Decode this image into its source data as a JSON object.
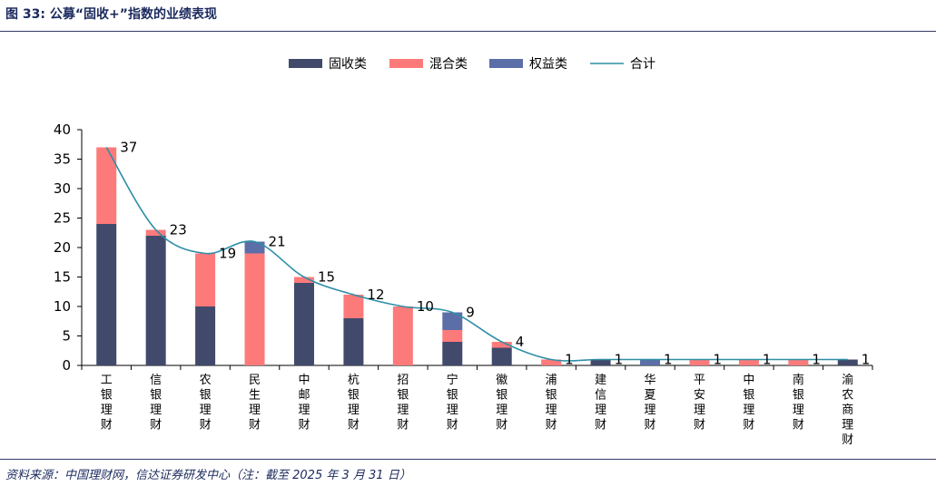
{
  "header": {
    "title": "图 33: 公募“固收+”指数的业绩表现"
  },
  "footer": {
    "source": "资料来源：中国理财网，信达证券研发中心（注：截至 2025 年 3 月 31 日）"
  },
  "colors": {
    "fixed": "#414a6b",
    "mixed": "#fd7a7b",
    "equity": "#5b6ea8",
    "total": "#2e8fa6"
  },
  "chart_data": {
    "type": "bar",
    "stacked": true,
    "categories": [
      "工银理财",
      "信银理财",
      "农银理财",
      "民生理财",
      "中邮理财",
      "杭银理财",
      "招银理财",
      "宁银理财",
      "徽银理财",
      "浦银理财",
      "建信理财",
      "华夏理财",
      "平安理财",
      "中银理财",
      "南银理财",
      "渝农商理财"
    ],
    "series": [
      {
        "name": "固收类",
        "color": "#414a6b",
        "values": [
          24,
          22,
          10,
          0,
          14,
          8,
          0,
          4,
          3,
          0,
          1,
          0,
          0,
          0,
          0,
          1
        ]
      },
      {
        "name": "混合类",
        "color": "#fd7a7b",
        "values": [
          13,
          1,
          9,
          19,
          1,
          4,
          10,
          2,
          1,
          1,
          0,
          0,
          1,
          1,
          1,
          0
        ]
      },
      {
        "name": "权益类",
        "color": "#5b6ea8",
        "values": [
          0,
          0,
          0,
          2,
          0,
          0,
          0,
          3,
          0,
          0,
          0,
          1,
          0,
          0,
          0,
          0
        ]
      },
      {
        "name": "合计",
        "type": "line",
        "color": "#2e8fa6",
        "values": [
          37,
          23,
          19,
          21,
          15,
          12,
          10,
          9,
          4,
          1,
          1,
          1,
          1,
          1,
          1,
          1
        ]
      }
    ],
    "ylim": [
      0,
      40
    ],
    "yticks": [
      "0",
      "5",
      "10",
      "15",
      "20",
      "25",
      "30",
      "35",
      "40"
    ],
    "legend_position": "top",
    "grid": false
  }
}
